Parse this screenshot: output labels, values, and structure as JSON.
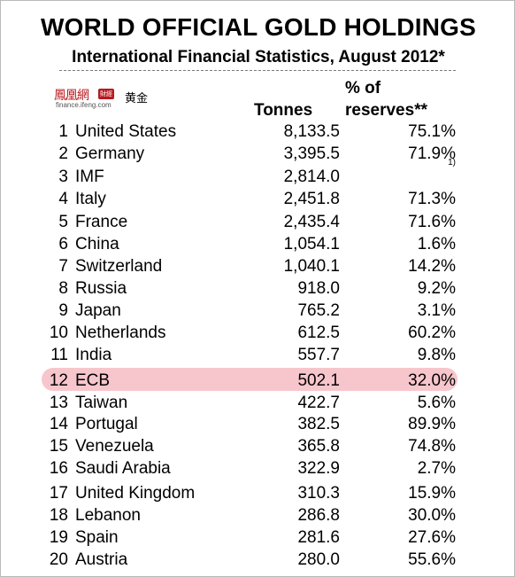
{
  "title": "WORLD OFFICIAL GOLD HOLDINGS",
  "subtitle": "International Financial Statistics, August 2012*",
  "logo": {
    "name_cn": "鳳凰網",
    "badge": "財經",
    "url": "finance.ifeng.com",
    "section_cn": "黄金"
  },
  "headers": {
    "tonnes": "Tonnes",
    "pct_line1": "% of",
    "pct_line2": "reserves**"
  },
  "highlight_color": "#f7c6cc",
  "rows": [
    {
      "rank": "1",
      "country": "United States",
      "tonnes": "8,133.5",
      "pct": "75.1%"
    },
    {
      "rank": "2",
      "country": "Germany",
      "tonnes": "3,395.5",
      "pct": "71.9%"
    },
    {
      "rank": "3",
      "country": "IMF",
      "tonnes": "2,814.0",
      "pct": "",
      "note": "1)"
    },
    {
      "rank": "4",
      "country": "Italy",
      "tonnes": "2,451.8",
      "pct": "71.3%"
    },
    {
      "rank": "5",
      "country": "France",
      "tonnes": "2,435.4",
      "pct": "71.6%"
    },
    {
      "rank": "6",
      "country": "China",
      "tonnes": "1,054.1",
      "pct": "1.6%"
    },
    {
      "rank": "7",
      "country": "Switzerland",
      "tonnes": "1,040.1",
      "pct": "14.2%"
    },
    {
      "rank": "8",
      "country": "Russia",
      "tonnes": "918.0",
      "pct": "9.2%"
    },
    {
      "rank": "9",
      "country": "Japan",
      "tonnes": "765.2",
      "pct": "3.1%"
    },
    {
      "rank": "10",
      "country": "Netherlands",
      "tonnes": "612.5",
      "pct": "60.2%"
    },
    {
      "rank": "11",
      "country": "India",
      "tonnes": "557.7",
      "pct": "9.8%"
    },
    {
      "rank": "12",
      "country": "ECB",
      "tonnes": "502.1",
      "pct": "32.0%",
      "highlighted": true
    },
    {
      "rank": "13",
      "country": "Taiwan",
      "tonnes": "422.7",
      "pct": "5.6%"
    },
    {
      "rank": "14",
      "country": "Portugal",
      "tonnes": "382.5",
      "pct": "89.9%"
    },
    {
      "rank": "15",
      "country": "Venezuela",
      "tonnes": "365.8",
      "pct": "74.8%"
    },
    {
      "rank": "16",
      "country": "Saudi Arabia",
      "tonnes": "322.9",
      "pct": "2.7%"
    },
    {
      "rank": "17",
      "country": "United Kingdom",
      "tonnes": "310.3",
      "pct": "15.9%"
    },
    {
      "rank": "18",
      "country": "Lebanon",
      "tonnes": "286.8",
      "pct": "30.0%"
    },
    {
      "rank": "19",
      "country": "Spain",
      "tonnes": "281.6",
      "pct": "27.6%"
    },
    {
      "rank": "20",
      "country": "Austria",
      "tonnes": "280.0",
      "pct": "55.6%"
    }
  ]
}
